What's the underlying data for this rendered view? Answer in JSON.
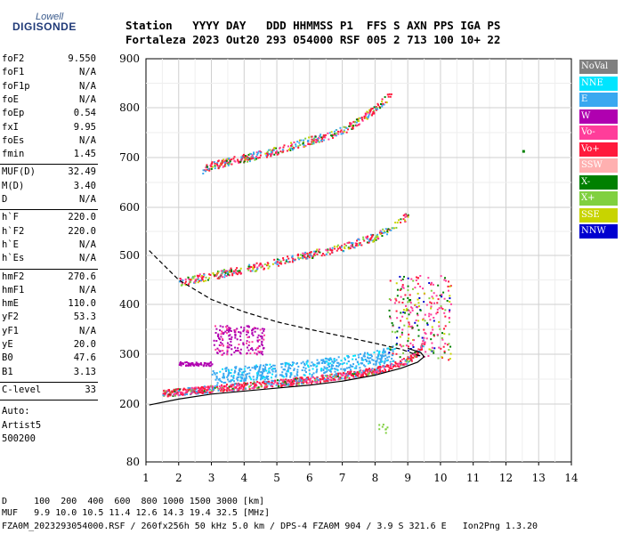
{
  "logo": {
    "line1": "Lowell",
    "line2": "DIGISONDE"
  },
  "header": {
    "row1": "Station   YYYY DAY   DDD HHMMSS P1  FFS S AXN PPS IGA PS",
    "row2": "Fortaleza 2023 Out20 293 054000 RSF 005 2 713 100 10+ 22"
  },
  "params": {
    "group1": [
      {
        "label": "foF2",
        "value": "9.550"
      },
      {
        "label": "foF1",
        "value": "N/A"
      },
      {
        "label": "foF1p",
        "value": "N/A"
      },
      {
        "label": "foE",
        "value": "N/A"
      },
      {
        "label": "foEp",
        "value": "0.54"
      },
      {
        "label": "fxI",
        "value": "9.95"
      },
      {
        "label": "foEs",
        "value": "N/A"
      },
      {
        "label": "fmin",
        "value": "1.45"
      }
    ],
    "group2": [
      {
        "label": "MUF(D)",
        "value": "32.49"
      },
      {
        "label": "M(D)",
        "value": "3.40"
      },
      {
        "label": "D",
        "value": "N/A"
      }
    ],
    "group3": [
      {
        "label": "h`F",
        "value": "220.0"
      },
      {
        "label": "h`F2",
        "value": "220.0"
      },
      {
        "label": "h`E",
        "value": "N/A"
      },
      {
        "label": "h`Es",
        "value": "N/A"
      }
    ],
    "group4": [
      {
        "label": "hmF2",
        "value": "270.6"
      },
      {
        "label": "hmF1",
        "value": "N/A"
      },
      {
        "label": "hmE",
        "value": "110.0"
      },
      {
        "label": "yF2",
        "value": "53.3"
      },
      {
        "label": "yF1",
        "value": "N/A"
      },
      {
        "label": "yE",
        "value": "20.0"
      },
      {
        "label": "B0",
        "value": "47.6"
      },
      {
        "label": "B1",
        "value": "3.13"
      }
    ],
    "clevel": {
      "label": "C-level",
      "value": "33"
    },
    "auto": [
      "Auto:",
      "Artist5",
      "500200"
    ]
  },
  "legend": [
    {
      "label": "NoVal",
      "color": "#808080"
    },
    {
      "label": "NNE",
      "color": "#00e5ff"
    },
    {
      "label": "E",
      "color": "#3aa8f0"
    },
    {
      "label": "W",
      "color": "#b000b0"
    },
    {
      "label": "Vo-",
      "color": "#ff3d9a"
    },
    {
      "label": "Vo+",
      "color": "#ff1a3c"
    },
    {
      "label": "SSW",
      "color": "#ffb0b0"
    },
    {
      "label": "X-",
      "color": "#008000"
    },
    {
      "label": "X+",
      "color": "#80d040"
    },
    {
      "label": "SSE",
      "color": "#c8d400"
    },
    {
      "label": "NNW",
      "color": "#0000d0"
    }
  ],
  "chart_data": {
    "type": "scatter",
    "xlim": [
      1,
      14
    ],
    "ylim": [
      80,
      900
    ],
    "x_ticks": [
      "1",
      "2",
      "3",
      "4",
      "5",
      "6",
      "7",
      "8",
      "9",
      "10",
      "11",
      "12",
      "13",
      "14"
    ],
    "y_ticks": [
      "80",
      "200",
      "300",
      "400",
      "500",
      "600",
      "700",
      "800",
      "900"
    ],
    "grid": true,
    "traces": [
      {
        "name": "profile-solid",
        "x": [
          1.1,
          2,
          3,
          4,
          5,
          6,
          7,
          8,
          8.8,
          9.3,
          9.5,
          9.4,
          9.0
        ],
        "y": [
          198,
          210,
          220,
          226,
          232,
          238,
          246,
          258,
          272,
          284,
          295,
          303,
          312
        ]
      },
      {
        "name": "profile-dashed",
        "x": [
          1.1,
          2,
          3,
          4,
          5,
          6,
          7,
          8,
          8.8,
          9.3,
          9.5
        ],
        "y": [
          510,
          450,
          410,
          385,
          365,
          350,
          336,
          322,
          310,
          298,
          295
        ]
      },
      {
        "name": "echo-O",
        "x": [
          1.5,
          2,
          3,
          4,
          5,
          6,
          7,
          8,
          8.5,
          9,
          9.3,
          9.5
        ],
        "y": [
          222,
          226,
          232,
          238,
          243,
          250,
          258,
          268,
          277,
          290,
          305,
          330
        ]
      },
      {
        "name": "echo-2hop",
        "x": [
          2,
          3,
          4,
          5,
          6,
          7,
          8,
          8.5,
          9
        ],
        "y": [
          447,
          460,
          473,
          487,
          503,
          518,
          540,
          560,
          585
        ]
      },
      {
        "name": "echo-3hop",
        "x": [
          2.7,
          3,
          4,
          5,
          6,
          7,
          7.5,
          8,
          8.5
        ],
        "y": [
          676,
          685,
          700,
          715,
          735,
          755,
          775,
          800,
          830
        ]
      }
    ]
  },
  "footer": {
    "line1": "D     100  200  400  600  800 1000 1500 3000 [km]",
    "line2": "MUF   9.9 10.0 10.5 11.4 12.6 14.3 19.4 32.5 [MHz]",
    "line3": "FZA0M_2023293054000.RSF / 260fx256h 50 kHz 5.0 km / DPS-4 FZA0M 904 / 3.9 S 321.6 E   Ion2Png 1.3.20"
  }
}
